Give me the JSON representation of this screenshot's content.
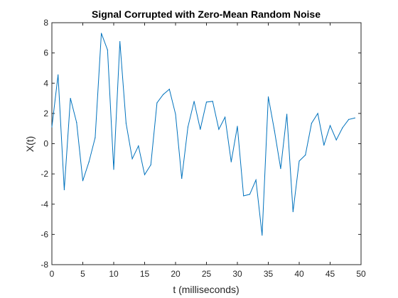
{
  "chart_data": {
    "type": "line",
    "title": "Signal Corrupted with Zero-Mean Random Noise",
    "xlabel": "t (milliseconds)",
    "ylabel": "X(t)",
    "xlim": [
      0,
      50
    ],
    "ylim": [
      -8,
      8
    ],
    "xticks": [
      0,
      5,
      10,
      15,
      20,
      25,
      30,
      35,
      40,
      45,
      50
    ],
    "yticks": [
      -8,
      -6,
      -4,
      -2,
      0,
      2,
      4,
      6,
      8
    ],
    "grid": false,
    "line_color": "#0072BD",
    "x": [
      0,
      1,
      2,
      3,
      4,
      5,
      6,
      7,
      8,
      9,
      10,
      11,
      12,
      13,
      14,
      15,
      16,
      17,
      18,
      19,
      20,
      21,
      22,
      23,
      24,
      25,
      26,
      27,
      28,
      29,
      30,
      31,
      32,
      33,
      34,
      35,
      36,
      37,
      38,
      39,
      40,
      41,
      42,
      43,
      44,
      45,
      46,
      47,
      48,
      49
    ],
    "series": [
      {
        "values": [
          1.1,
          4.55,
          -3.05,
          3.0,
          1.4,
          -2.45,
          -1.2,
          0.4,
          7.3,
          6.2,
          -1.7,
          6.75,
          1.35,
          -1.0,
          -0.15,
          -2.05,
          -1.4,
          2.7,
          3.25,
          3.6,
          1.95,
          -2.3,
          1.1,
          2.8,
          0.95,
          2.75,
          2.8,
          0.95,
          1.75,
          -1.2,
          1.15,
          -3.45,
          -3.35,
          -2.4,
          -6.05,
          3.1,
          0.85,
          -1.65,
          1.95,
          -4.5,
          -1.15,
          -0.75,
          1.35,
          2.0,
          -0.1,
          1.2,
          0.25,
          1.05,
          1.6,
          1.7
        ]
      }
    ]
  }
}
